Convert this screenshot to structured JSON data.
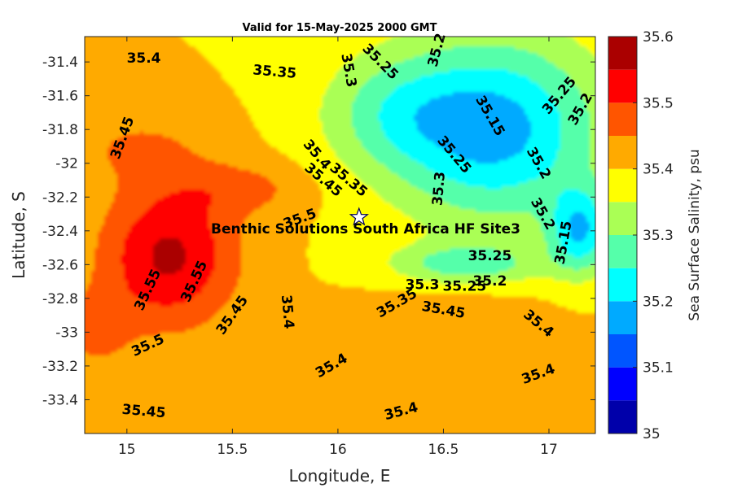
{
  "chart_data": {
    "type": "heatmap",
    "subtype": "filled-contour-map",
    "title": "Valid for 15-May-2025 2000 GMT",
    "xlabel": "Longitude, E",
    "ylabel": "Latitude, S",
    "xlim": [
      14.8,
      17.22
    ],
    "ylim": [
      -33.6,
      -31.25
    ],
    "x_ticks": [
      15,
      15.5,
      16,
      16.5,
      17
    ],
    "x_tick_labels": [
      "15",
      "15.5",
      "16",
      "16.5",
      "17"
    ],
    "y_ticks": [
      -31.4,
      -31.6,
      -31.8,
      -32,
      -32.2,
      -32.4,
      -32.6,
      -32.8,
      -33,
      -33.2,
      -33.4
    ],
    "y_tick_labels": [
      "-31.4",
      "-31.6",
      "-31.8",
      "-32",
      "-32.2",
      "-32.4",
      "-32.6",
      "-32.8",
      "-33",
      "-33.2",
      "-33.4"
    ],
    "colorbar": {
      "label": "Sea Surface Salinity, psu",
      "min": 35,
      "max": 35.6,
      "ticks": [
        35,
        35.1,
        35.2,
        35.3,
        35.4,
        35.5,
        35.6
      ],
      "tick_labels": [
        "35",
        "35.1",
        "35.2",
        "35.3",
        "35.4",
        "35.5",
        "35.6"
      ],
      "levels": [
        35,
        35.05,
        35.1,
        35.15,
        35.2,
        35.25,
        35.3,
        35.35,
        35.4,
        35.45,
        35.5,
        35.55,
        35.6
      ],
      "colors": [
        "#0000aa",
        "#0000ff",
        "#0055ff",
        "#00aaff",
        "#00ffff",
        "#55ffaa",
        "#aaff55",
        "#ffff00",
        "#ffaa00",
        "#ff5500",
        "#ff0000",
        "#aa0000"
      ]
    },
    "site": {
      "name": "Benthic Solutions South Africa HF Site3",
      "lon": 16.1,
      "lat": -32.32,
      "marker": "white-star"
    },
    "contour_labels": [
      {
        "text": "35.4",
        "lon": 15.08,
        "lat": -31.38,
        "rot": 0
      },
      {
        "text": "35.35",
        "lon": 15.7,
        "lat": -31.46,
        "rot": 5
      },
      {
        "text": "35.3",
        "lon": 16.05,
        "lat": -31.45,
        "rot": 80
      },
      {
        "text": "35.25",
        "lon": 16.2,
        "lat": -31.4,
        "rot": 45
      },
      {
        "text": "35.2",
        "lon": 16.47,
        "lat": -31.33,
        "rot": -75
      },
      {
        "text": "35.15",
        "lon": 16.72,
        "lat": -31.72,
        "rot": 60
      },
      {
        "text": "35.25",
        "lon": 17.05,
        "lat": -31.6,
        "rot": -50
      },
      {
        "text": "35.2",
        "lon": 17.15,
        "lat": -31.68,
        "rot": -60
      },
      {
        "text": "35.45",
        "lon": 14.98,
        "lat": -31.85,
        "rot": -70
      },
      {
        "text": "35.4",
        "lon": 15.9,
        "lat": -31.95,
        "rot": 50
      },
      {
        "text": "35.45",
        "lon": 15.93,
        "lat": -32.1,
        "rot": 40
      },
      {
        "text": "35.35",
        "lon": 16.05,
        "lat": -32.1,
        "rot": 40
      },
      {
        "text": "35.25",
        "lon": 16.55,
        "lat": -31.95,
        "rot": 50
      },
      {
        "text": "35.3",
        "lon": 16.48,
        "lat": -32.15,
        "rot": -85
      },
      {
        "text": "35.2",
        "lon": 16.95,
        "lat": -32.0,
        "rot": 60
      },
      {
        "text": "35.2",
        "lon": 16.97,
        "lat": -32.3,
        "rot": 60
      },
      {
        "text": "35.15",
        "lon": 17.07,
        "lat": -32.47,
        "rot": -80
      },
      {
        "text": "35.5",
        "lon": 15.82,
        "lat": -32.33,
        "rot": -20
      },
      {
        "text": "35.25",
        "lon": 16.72,
        "lat": -32.55,
        "rot": 0
      },
      {
        "text": "35.55",
        "lon": 15.1,
        "lat": -32.75,
        "rot": -65
      },
      {
        "text": "35.55",
        "lon": 15.32,
        "lat": -32.7,
        "rot": -65
      },
      {
        "text": "35.45",
        "lon": 15.5,
        "lat": -32.9,
        "rot": -55
      },
      {
        "text": "35.4",
        "lon": 15.76,
        "lat": -32.88,
        "rot": 85
      },
      {
        "text": "35.3",
        "lon": 16.4,
        "lat": -32.72,
        "rot": 0
      },
      {
        "text": "35.25",
        "lon": 16.6,
        "lat": -32.73,
        "rot": 0
      },
      {
        "text": "35.2",
        "lon": 16.72,
        "lat": -32.7,
        "rot": 0
      },
      {
        "text": "35.35",
        "lon": 16.28,
        "lat": -32.83,
        "rot": -30
      },
      {
        "text": "35.45",
        "lon": 16.5,
        "lat": -32.87,
        "rot": 10
      },
      {
        "text": "35.4",
        "lon": 16.95,
        "lat": -32.95,
        "rot": 40
      },
      {
        "text": "35.5",
        "lon": 15.1,
        "lat": -33.08,
        "rot": -25
      },
      {
        "text": "35.4",
        "lon": 15.97,
        "lat": -33.2,
        "rot": -30
      },
      {
        "text": "35.4",
        "lon": 16.95,
        "lat": -33.25,
        "rot": -20
      },
      {
        "text": "35.45",
        "lon": 15.08,
        "lat": -33.47,
        "rot": 5
      },
      {
        "text": "35.4",
        "lon": 16.3,
        "lat": -33.47,
        "rot": -15
      }
    ]
  }
}
